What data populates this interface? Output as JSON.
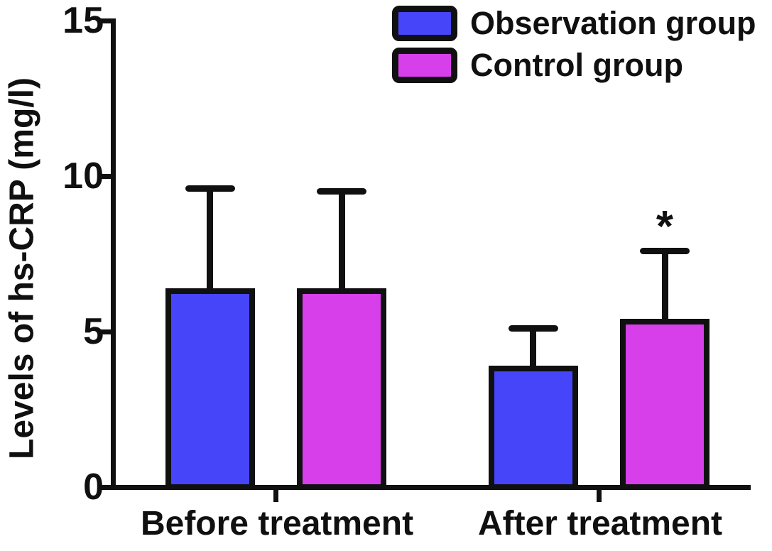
{
  "figure": {
    "background": "#ffffff",
    "axis_color": "#101010"
  },
  "chart_data": {
    "type": "bar",
    "title": "",
    "xlabel": "",
    "ylabel": "Levels of hs-CRP (mg/l)",
    "categories": [
      "Before treatment",
      "After treatment"
    ],
    "yticks": [
      "0",
      "5",
      "10",
      "15"
    ],
    "ylim": [
      0,
      15
    ],
    "grid": false,
    "legend_position": "top-right",
    "error_bars": "upper",
    "series": [
      {
        "name": "Observation group",
        "color": "#4645fa",
        "values": [
          6.4,
          3.9
        ],
        "errors_upper": [
          3.2,
          1.2
        ],
        "sig": [
          "",
          ""
        ]
      },
      {
        "name": "Control group",
        "color": "#d63fe9",
        "values": [
          6.4,
          5.4
        ],
        "errors_upper": [
          3.1,
          2.2
        ],
        "sig": [
          "",
          "*"
        ]
      }
    ]
  }
}
